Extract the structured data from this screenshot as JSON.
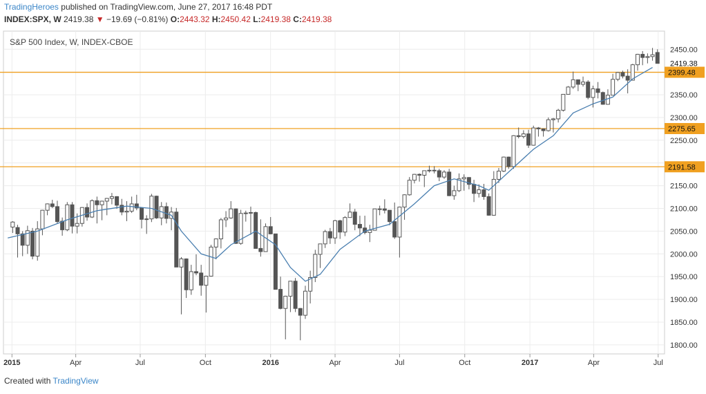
{
  "header": {
    "author": "TradingHeroes",
    "published_text": "published on TradingView.com, June 27, 2017 16:48 PDT",
    "symbol": "INDEX:SPX, W",
    "last": "2419.38",
    "change": "−19.69 (−0.81%)",
    "open_label": "O:",
    "open": "2443.32",
    "high_label": "H:",
    "high": "2450.42",
    "low_label": "L:",
    "low": "2419.38",
    "close_label": "C:",
    "close": "2419.38"
  },
  "footer": {
    "created_label": "Created with",
    "brand": "TradingView"
  },
  "colors": {
    "candle": "#555555",
    "ma": "#4a7fb0",
    "level": "#f0a020",
    "level_label_bg": "#f0a020",
    "brand": "#3b86c8",
    "down": "#c62828"
  },
  "chart_data": {
    "type": "candlestick",
    "title": "S&P 500 Index, W, INDEX-CBOE",
    "y_ticks": [
      2450,
      2400,
      2350,
      2300,
      2250,
      2200,
      2150,
      2100,
      2050,
      2000,
      1950,
      1900,
      1850,
      1800
    ],
    "ylim": [
      1780,
      2490
    ],
    "x_ticks": [
      {
        "label": "2015",
        "bold": true,
        "x": "2015-01-01"
      },
      {
        "label": "Apr",
        "bold": false,
        "x": "2015-04-01"
      },
      {
        "label": "Jul",
        "bold": false,
        "x": "2015-07-01"
      },
      {
        "label": "Oct",
        "bold": false,
        "x": "2015-10-01"
      },
      {
        "label": "2016",
        "bold": true,
        "x": "2016-01-01"
      },
      {
        "label": "Apr",
        "bold": false,
        "x": "2016-04-01"
      },
      {
        "label": "Jul",
        "bold": false,
        "x": "2016-07-01"
      },
      {
        "label": "Oct",
        "bold": false,
        "x": "2016-10-01"
      },
      {
        "label": "2017",
        "bold": true,
        "x": "2017-01-01"
      },
      {
        "label": "Apr",
        "bold": false,
        "x": "2017-04-01"
      },
      {
        "label": "Jul",
        "bold": false,
        "x": "2017-07-01"
      }
    ],
    "xlim": [
      "2014-12-20",
      "2017-07-10"
    ],
    "horizontal_levels": [
      2399.48,
      2275.65,
      2191.58
    ],
    "price_marker": 2419.38,
    "grid": true,
    "moving_average": [
      {
        "x": "2014-12-26",
        "y": 2035
      },
      {
        "x": "2015-02-06",
        "y": 2050
      },
      {
        "x": "2015-03-20",
        "y": 2075
      },
      {
        "x": "2015-05-01",
        "y": 2095
      },
      {
        "x": "2015-06-12",
        "y": 2105
      },
      {
        "x": "2015-07-17",
        "y": 2100
      },
      {
        "x": "2015-08-14",
        "y": 2085
      },
      {
        "x": "2015-08-28",
        "y": 2050
      },
      {
        "x": "2015-09-25",
        "y": 2000
      },
      {
        "x": "2015-10-16",
        "y": 1990
      },
      {
        "x": "2015-11-06",
        "y": 2020
      },
      {
        "x": "2015-12-11",
        "y": 2050
      },
      {
        "x": "2016-01-08",
        "y": 2020
      },
      {
        "x": "2016-01-29",
        "y": 1970
      },
      {
        "x": "2016-02-19",
        "y": 1940
      },
      {
        "x": "2016-03-11",
        "y": 1955
      },
      {
        "x": "2016-04-08",
        "y": 2010
      },
      {
        "x": "2016-05-13",
        "y": 2050
      },
      {
        "x": "2016-06-17",
        "y": 2065
      },
      {
        "x": "2016-07-22",
        "y": 2110
      },
      {
        "x": "2016-08-19",
        "y": 2150
      },
      {
        "x": "2016-09-16",
        "y": 2165
      },
      {
        "x": "2016-10-21",
        "y": 2150
      },
      {
        "x": "2016-11-04",
        "y": 2140
      },
      {
        "x": "2016-12-02",
        "y": 2180
      },
      {
        "x": "2017-01-06",
        "y": 2230
      },
      {
        "x": "2017-02-03",
        "y": 2260
      },
      {
        "x": "2017-03-03",
        "y": 2310
      },
      {
        "x": "2017-03-31",
        "y": 2330
      },
      {
        "x": "2017-04-28",
        "y": 2345
      },
      {
        "x": "2017-05-26",
        "y": 2385
      },
      {
        "x": "2017-06-23",
        "y": 2410
      }
    ],
    "candles": [
      {
        "x": "2015-01-02",
        "o": 2059,
        "h": 2072,
        "l": 2046,
        "c": 2070
      },
      {
        "x": "2015-01-09",
        "o": 2058,
        "h": 2064,
        "l": 1992,
        "c": 2044
      },
      {
        "x": "2015-01-16",
        "o": 2044,
        "h": 2050,
        "l": 1995,
        "c": 2019
      },
      {
        "x": "2015-01-23",
        "o": 2019,
        "h": 2062,
        "l": 2000,
        "c": 2051
      },
      {
        "x": "2015-01-30",
        "o": 2050,
        "h": 2057,
        "l": 1988,
        "c": 1995
      },
      {
        "x": "2015-02-06",
        "o": 1995,
        "h": 2072,
        "l": 1985,
        "c": 2055
      },
      {
        "x": "2015-02-13",
        "o": 2055,
        "h": 2097,
        "l": 2041,
        "c": 2096
      },
      {
        "x": "2015-02-20",
        "o": 2096,
        "h": 2111,
        "l": 2085,
        "c": 2110
      },
      {
        "x": "2015-02-27",
        "o": 2110,
        "h": 2119,
        "l": 2101,
        "c": 2104
      },
      {
        "x": "2015-03-06",
        "o": 2104,
        "h": 2117,
        "l": 2067,
        "c": 2071
      },
      {
        "x": "2015-03-13",
        "o": 2072,
        "h": 2080,
        "l": 2040,
        "c": 2053
      },
      {
        "x": "2015-03-20",
        "o": 2053,
        "h": 2114,
        "l": 2050,
        "c": 2108
      },
      {
        "x": "2015-03-27",
        "o": 2108,
        "h": 2114,
        "l": 2045,
        "c": 2061
      },
      {
        "x": "2015-04-03",
        "o": 2061,
        "h": 2089,
        "l": 2045,
        "c": 2067
      },
      {
        "x": "2015-04-10",
        "o": 2067,
        "h": 2103,
        "l": 2060,
        "c": 2102
      },
      {
        "x": "2015-04-17",
        "o": 2102,
        "h": 2111,
        "l": 2073,
        "c": 2081
      },
      {
        "x": "2015-04-24",
        "o": 2081,
        "h": 2120,
        "l": 2079,
        "c": 2117
      },
      {
        "x": "2015-05-01",
        "o": 2117,
        "h": 2126,
        "l": 2067,
        "c": 2108
      },
      {
        "x": "2015-05-08",
        "o": 2108,
        "h": 2117,
        "l": 2074,
        "c": 2116
      },
      {
        "x": "2015-05-15",
        "o": 2116,
        "h": 2123,
        "l": 2085,
        "c": 2122
      },
      {
        "x": "2015-05-22",
        "o": 2122,
        "h": 2134,
        "l": 2109,
        "c": 2126
      },
      {
        "x": "2015-05-29",
        "o": 2126,
        "h": 2127,
        "l": 2099,
        "c": 2107
      },
      {
        "x": "2015-06-05",
        "o": 2107,
        "h": 2121,
        "l": 2085,
        "c": 2092
      },
      {
        "x": "2015-06-12",
        "o": 2092,
        "h": 2116,
        "l": 2072,
        "c": 2094
      },
      {
        "x": "2015-06-19",
        "o": 2094,
        "h": 2126,
        "l": 2090,
        "c": 2110
      },
      {
        "x": "2015-06-26",
        "o": 2110,
        "h": 2130,
        "l": 2096,
        "c": 2101
      },
      {
        "x": "2015-07-03",
        "o": 2101,
        "h": 2103,
        "l": 2056,
        "c": 2076
      },
      {
        "x": "2015-07-10",
        "o": 2076,
        "h": 2085,
        "l": 2044,
        "c": 2077
      },
      {
        "x": "2015-07-17",
        "o": 2077,
        "h": 2132,
        "l": 2070,
        "c": 2127
      },
      {
        "x": "2015-07-24",
        "o": 2127,
        "h": 2128,
        "l": 2077,
        "c": 2079
      },
      {
        "x": "2015-07-31",
        "o": 2079,
        "h": 2114,
        "l": 2063,
        "c": 2104
      },
      {
        "x": "2015-08-07",
        "o": 2104,
        "h": 2113,
        "l": 2067,
        "c": 2078
      },
      {
        "x": "2015-08-14",
        "o": 2078,
        "h": 2103,
        "l": 2052,
        "c": 2092
      },
      {
        "x": "2015-08-21",
        "o": 2092,
        "h": 2101,
        "l": 1971,
        "c": 1971
      },
      {
        "x": "2015-08-28",
        "o": 1971,
        "h": 1993,
        "l": 1867,
        "c": 1989
      },
      {
        "x": "2015-09-04",
        "o": 1989,
        "h": 1990,
        "l": 1903,
        "c": 1921
      },
      {
        "x": "2015-09-11",
        "o": 1921,
        "h": 1976,
        "l": 1910,
        "c": 1961
      },
      {
        "x": "2015-09-18",
        "o": 1961,
        "h": 1999,
        "l": 1953,
        "c": 1958
      },
      {
        "x": "2015-09-25",
        "o": 1958,
        "h": 1976,
        "l": 1908,
        "c": 1931
      },
      {
        "x": "2015-10-02",
        "o": 1931,
        "h": 1952,
        "l": 1871,
        "c": 1951
      },
      {
        "x": "2015-10-09",
        "o": 1951,
        "h": 2020,
        "l": 1950,
        "c": 2015
      },
      {
        "x": "2015-10-16",
        "o": 2015,
        "h": 2034,
        "l": 1988,
        "c": 2033
      },
      {
        "x": "2015-10-23",
        "o": 2033,
        "h": 2079,
        "l": 2012,
        "c": 2075
      },
      {
        "x": "2015-10-30",
        "o": 2075,
        "h": 2094,
        "l": 2059,
        "c": 2079
      },
      {
        "x": "2015-11-06",
        "o": 2079,
        "h": 2116,
        "l": 2077,
        "c": 2099
      },
      {
        "x": "2015-11-13",
        "o": 2099,
        "h": 2100,
        "l": 2022,
        "c": 2023
      },
      {
        "x": "2015-11-20",
        "o": 2023,
        "h": 2097,
        "l": 2020,
        "c": 2089
      },
      {
        "x": "2015-11-27",
        "o": 2089,
        "h": 2095,
        "l": 2071,
        "c": 2090
      },
      {
        "x": "2015-12-04",
        "o": 2090,
        "h": 2104,
        "l": 2042,
        "c": 2091
      },
      {
        "x": "2015-12-11",
        "o": 2091,
        "h": 2093,
        "l": 2013,
        "c": 2012
      },
      {
        "x": "2015-12-18",
        "o": 2012,
        "h": 2076,
        "l": 1994,
        "c": 2005
      },
      {
        "x": "2015-12-25",
        "o": 2005,
        "h": 2067,
        "l": 2005,
        "c": 2060
      },
      {
        "x": "2016-01-01",
        "o": 2060,
        "h": 2081,
        "l": 2043,
        "c": 2044
      },
      {
        "x": "2016-01-08",
        "o": 2044,
        "h": 2044,
        "l": 1922,
        "c": 1922
      },
      {
        "x": "2016-01-15",
        "o": 1922,
        "h": 1950,
        "l": 1878,
        "c": 1880
      },
      {
        "x": "2016-01-22",
        "o": 1880,
        "h": 1908,
        "l": 1812,
        "c": 1907
      },
      {
        "x": "2016-01-29",
        "o": 1907,
        "h": 1940,
        "l": 1872,
        "c": 1940
      },
      {
        "x": "2016-02-05",
        "o": 1940,
        "h": 1947,
        "l": 1872,
        "c": 1880
      },
      {
        "x": "2016-02-12",
        "o": 1880,
        "h": 1881,
        "l": 1810,
        "c": 1865
      },
      {
        "x": "2016-02-19",
        "o": 1865,
        "h": 1930,
        "l": 1857,
        "c": 1918
      },
      {
        "x": "2016-02-26",
        "o": 1918,
        "h": 1963,
        "l": 1891,
        "c": 1948
      },
      {
        "x": "2016-03-04",
        "o": 1948,
        "h": 2009,
        "l": 1938,
        "c": 1999
      },
      {
        "x": "2016-03-11",
        "o": 1999,
        "h": 2022,
        "l": 1969,
        "c": 2022
      },
      {
        "x": "2016-03-18",
        "o": 2022,
        "h": 2053,
        "l": 2013,
        "c": 2049
      },
      {
        "x": "2016-03-25",
        "o": 2049,
        "h": 2057,
        "l": 2022,
        "c": 2035
      },
      {
        "x": "2016-04-01",
        "o": 2035,
        "h": 2075,
        "l": 2022,
        "c": 2073
      },
      {
        "x": "2016-04-08",
        "o": 2073,
        "h": 2075,
        "l": 2033,
        "c": 2048
      },
      {
        "x": "2016-04-15",
        "o": 2048,
        "h": 2083,
        "l": 2039,
        "c": 2080
      },
      {
        "x": "2016-04-22",
        "o": 2080,
        "h": 2111,
        "l": 2080,
        "c": 2092
      },
      {
        "x": "2016-04-29",
        "o": 2092,
        "h": 2099,
        "l": 2052,
        "c": 2065
      },
      {
        "x": "2016-05-06",
        "o": 2065,
        "h": 2084,
        "l": 2039,
        "c": 2057
      },
      {
        "x": "2016-05-13",
        "o": 2057,
        "h": 2084,
        "l": 2043,
        "c": 2047
      },
      {
        "x": "2016-05-20",
        "o": 2047,
        "h": 2064,
        "l": 2026,
        "c": 2052
      },
      {
        "x": "2016-05-27",
        "o": 2052,
        "h": 2099,
        "l": 2052,
        "c": 2099
      },
      {
        "x": "2016-06-03",
        "o": 2099,
        "h": 2106,
        "l": 2085,
        "c": 2099
      },
      {
        "x": "2016-06-10",
        "o": 2099,
        "h": 2120,
        "l": 2089,
        "c": 2096
      },
      {
        "x": "2016-06-17",
        "o": 2096,
        "h": 2096,
        "l": 2063,
        "c": 2071
      },
      {
        "x": "2016-06-24",
        "o": 2071,
        "h": 2113,
        "l": 2033,
        "c": 2037
      },
      {
        "x": "2016-07-01",
        "o": 2037,
        "h": 2104,
        "l": 1992,
        "c": 2103
      },
      {
        "x": "2016-07-08",
        "o": 2103,
        "h": 2131,
        "l": 2075,
        "c": 2130
      },
      {
        "x": "2016-07-15",
        "o": 2130,
        "h": 2169,
        "l": 2128,
        "c": 2162
      },
      {
        "x": "2016-07-22",
        "o": 2162,
        "h": 2176,
        "l": 2155,
        "c": 2175
      },
      {
        "x": "2016-07-29",
        "o": 2175,
        "h": 2177,
        "l": 2159,
        "c": 2173
      },
      {
        "x": "2016-08-05",
        "o": 2173,
        "h": 2183,
        "l": 2147,
        "c": 2183
      },
      {
        "x": "2016-08-12",
        "o": 2183,
        "h": 2194,
        "l": 2179,
        "c": 2184
      },
      {
        "x": "2016-08-19",
        "o": 2184,
        "h": 2193,
        "l": 2177,
        "c": 2183
      },
      {
        "x": "2016-08-26",
        "o": 2183,
        "h": 2187,
        "l": 2160,
        "c": 2169
      },
      {
        "x": "2016-09-02",
        "o": 2169,
        "h": 2184,
        "l": 2165,
        "c": 2180
      },
      {
        "x": "2016-09-09",
        "o": 2180,
        "h": 2187,
        "l": 2127,
        "c": 2128
      },
      {
        "x": "2016-09-16",
        "o": 2128,
        "h": 2150,
        "l": 2119,
        "c": 2139
      },
      {
        "x": "2016-09-23",
        "o": 2139,
        "h": 2177,
        "l": 2136,
        "c": 2165
      },
      {
        "x": "2016-09-30",
        "o": 2165,
        "h": 2175,
        "l": 2139,
        "c": 2168
      },
      {
        "x": "2016-10-07",
        "o": 2168,
        "h": 2169,
        "l": 2142,
        "c": 2153
      },
      {
        "x": "2016-10-14",
        "o": 2153,
        "h": 2163,
        "l": 2114,
        "c": 2133
      },
      {
        "x": "2016-10-21",
        "o": 2133,
        "h": 2153,
        "l": 2124,
        "c": 2141
      },
      {
        "x": "2016-10-28",
        "o": 2141,
        "h": 2154,
        "l": 2119,
        "c": 2126
      },
      {
        "x": "2016-11-04",
        "o": 2126,
        "h": 2133,
        "l": 2084,
        "c": 2085
      },
      {
        "x": "2016-11-11",
        "o": 2085,
        "h": 2182,
        "l": 2084,
        "c": 2164
      },
      {
        "x": "2016-11-18",
        "o": 2164,
        "h": 2189,
        "l": 2156,
        "c": 2182
      },
      {
        "x": "2016-11-25",
        "o": 2182,
        "h": 2214,
        "l": 2180,
        "c": 2213
      },
      {
        "x": "2016-12-02",
        "o": 2213,
        "h": 2214,
        "l": 2187,
        "c": 2192
      },
      {
        "x": "2016-12-09",
        "o": 2192,
        "h": 2261,
        "l": 2187,
        "c": 2260
      },
      {
        "x": "2016-12-16",
        "o": 2260,
        "h": 2278,
        "l": 2254,
        "c": 2258
      },
      {
        "x": "2016-12-23",
        "o": 2258,
        "h": 2272,
        "l": 2254,
        "c": 2264
      },
      {
        "x": "2016-12-30",
        "o": 2264,
        "h": 2273,
        "l": 2233,
        "c": 2239
      },
      {
        "x": "2017-01-06",
        "o": 2239,
        "h": 2282,
        "l": 2238,
        "c": 2277
      },
      {
        "x": "2017-01-13",
        "o": 2277,
        "h": 2279,
        "l": 2258,
        "c": 2275
      },
      {
        "x": "2017-01-20",
        "o": 2275,
        "h": 2276,
        "l": 2258,
        "c": 2271
      },
      {
        "x": "2017-01-27",
        "o": 2271,
        "h": 2300,
        "l": 2269,
        "c": 2295
      },
      {
        "x": "2017-02-03",
        "o": 2295,
        "h": 2299,
        "l": 2267,
        "c": 2297
      },
      {
        "x": "2017-02-10",
        "o": 2297,
        "h": 2319,
        "l": 2289,
        "c": 2316
      },
      {
        "x": "2017-02-17",
        "o": 2316,
        "h": 2351,
        "l": 2313,
        "c": 2351
      },
      {
        "x": "2017-02-24",
        "o": 2351,
        "h": 2369,
        "l": 2352,
        "c": 2367
      },
      {
        "x": "2017-03-03",
        "o": 2367,
        "h": 2401,
        "l": 2363,
        "c": 2383
      },
      {
        "x": "2017-03-10",
        "o": 2383,
        "h": 2383,
        "l": 2358,
        "c": 2373
      },
      {
        "x": "2017-03-17",
        "o": 2373,
        "h": 2390,
        "l": 2368,
        "c": 2378
      },
      {
        "x": "2017-03-24",
        "o": 2378,
        "h": 2382,
        "l": 2340,
        "c": 2344
      },
      {
        "x": "2017-03-31",
        "o": 2344,
        "h": 2370,
        "l": 2322,
        "c": 2363
      },
      {
        "x": "2017-04-07",
        "o": 2363,
        "h": 2378,
        "l": 2342,
        "c": 2355
      },
      {
        "x": "2017-04-14",
        "o": 2355,
        "h": 2357,
        "l": 2328,
        "c": 2329
      },
      {
        "x": "2017-04-21",
        "o": 2329,
        "h": 2362,
        "l": 2328,
        "c": 2349
      },
      {
        "x": "2017-04-28",
        "o": 2349,
        "h": 2396,
        "l": 2349,
        "c": 2384
      },
      {
        "x": "2017-05-05",
        "o": 2384,
        "h": 2400,
        "l": 2380,
        "c": 2399
      },
      {
        "x": "2017-05-12",
        "o": 2399,
        "h": 2403,
        "l": 2386,
        "c": 2391
      },
      {
        "x": "2017-05-19",
        "o": 2391,
        "h": 2406,
        "l": 2353,
        "c": 2382
      },
      {
        "x": "2017-05-26",
        "o": 2382,
        "h": 2418,
        "l": 2382,
        "c": 2416
      },
      {
        "x": "2017-06-02",
        "o": 2416,
        "h": 2440,
        "l": 2403,
        "c": 2439
      },
      {
        "x": "2017-06-09",
        "o": 2439,
        "h": 2446,
        "l": 2415,
        "c": 2432
      },
      {
        "x": "2017-06-16",
        "o": 2432,
        "h": 2441,
        "l": 2419,
        "c": 2434
      },
      {
        "x": "2017-06-23",
        "o": 2434,
        "h": 2453,
        "l": 2425,
        "c": 2438
      },
      {
        "x": "2017-06-30",
        "o": 2443,
        "h": 2450,
        "l": 2419,
        "c": 2419
      }
    ]
  }
}
